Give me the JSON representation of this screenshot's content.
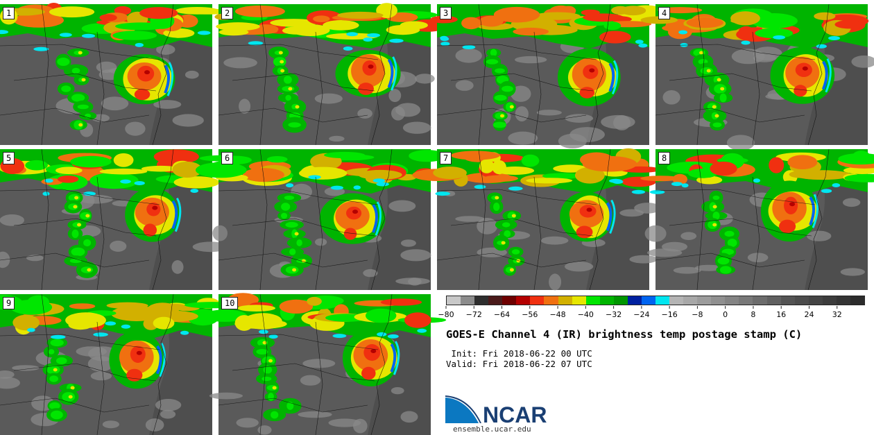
{
  "panels": [
    {
      "label": "1",
      "seed": 11
    },
    {
      "label": "2",
      "seed": 23
    },
    {
      "label": "3",
      "seed": 37
    },
    {
      "label": "4",
      "seed": 41
    },
    {
      "label": "5",
      "seed": 53
    },
    {
      "label": "6",
      "seed": 67
    },
    {
      "label": "7",
      "seed": 71
    },
    {
      "label": "8",
      "seed": 83
    },
    {
      "label": "9",
      "seed": 97
    },
    {
      "label": "10",
      "seed": 101
    }
  ],
  "colorbar": {
    "colors": [
      "#c8c8c8",
      "#8c8c8c",
      "#2e2e2e",
      "#4a1a1a",
      "#6e0000",
      "#b40000",
      "#f03010",
      "#f07010",
      "#d2b000",
      "#e6e600",
      "#00e600",
      "#00b400",
      "#009600",
      "#0020a0",
      "#0064f0",
      "#00e6f0",
      "#b4b4b4",
      "#a8a8a8",
      "#9c9c9c",
      "#909090",
      "#848484",
      "#787878",
      "#6c6c6c",
      "#606060",
      "#545454",
      "#4c4c4c",
      "#444444",
      "#3c3c3c",
      "#343434",
      "#2c2c2c"
    ],
    "tick_labels": [
      "−80",
      "−72",
      "−64",
      "−56",
      "−48",
      "−40",
      "−32",
      "−24",
      "−16",
      "−8",
      "0",
      "8",
      "16",
      "24",
      "32"
    ]
  },
  "title": "GOES-E Channel 4 (IR) brightness temp postage stamp (C)",
  "init_line": " Init: Fri 2018-06-22 00 UTC",
  "valid_line": "Valid: Fri 2018-06-22 07 UTC",
  "logo_text": "NCAR",
  "url": "ensemble.ucar.edu"
}
